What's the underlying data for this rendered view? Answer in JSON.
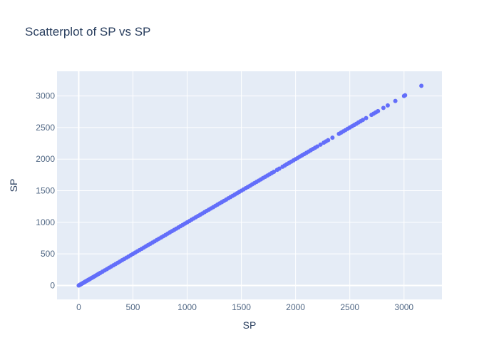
{
  "chart_data": {
    "type": "scatter",
    "title": "Scatterplot of SP vs SP",
    "xlabel": "SP",
    "ylabel": "SP",
    "xlim": [
      -200,
      3350
    ],
    "ylim": [
      -220,
      3390
    ],
    "x_ticks": [
      0,
      500,
      1000,
      1500,
      2000,
      2500,
      3000
    ],
    "y_ticks": [
      0,
      500,
      1000,
      1500,
      2000,
      2500,
      3000
    ],
    "grid": true,
    "legend": "none",
    "colors": {
      "plot_background": "#e5ecf6",
      "grid": "#ffffff",
      "marker": "#636efa",
      "title": "#2a3f5f",
      "tick_label": "#506784",
      "axis_label": "#2a3f5f"
    },
    "points": [
      [
        0,
        0
      ],
      [
        5,
        5
      ],
      [
        10,
        10
      ],
      [
        15,
        15
      ],
      [
        20,
        20
      ],
      [
        25,
        25
      ],
      [
        30,
        30
      ],
      [
        35,
        35
      ],
      [
        40,
        40
      ],
      [
        45,
        45
      ],
      [
        50,
        50
      ],
      [
        55,
        55
      ],
      [
        60,
        60
      ],
      [
        65,
        65
      ],
      [
        70,
        70
      ],
      [
        75,
        75
      ],
      [
        80,
        80
      ],
      [
        85,
        85
      ],
      [
        90,
        90
      ],
      [
        95,
        95
      ],
      [
        100,
        100
      ],
      [
        110,
        110
      ],
      [
        120,
        120
      ],
      [
        130,
        130
      ],
      [
        140,
        140
      ],
      [
        150,
        150
      ],
      [
        160,
        160
      ],
      [
        170,
        170
      ],
      [
        180,
        180
      ],
      [
        190,
        190
      ],
      [
        200,
        200
      ],
      [
        220,
        220
      ],
      [
        240,
        240
      ],
      [
        260,
        260
      ],
      [
        280,
        280
      ],
      [
        300,
        300
      ],
      [
        320,
        320
      ],
      [
        340,
        340
      ],
      [
        360,
        360
      ],
      [
        380,
        380
      ],
      [
        400,
        400
      ],
      [
        420,
        420
      ],
      [
        440,
        440
      ],
      [
        460,
        460
      ],
      [
        480,
        480
      ],
      [
        500,
        500
      ],
      [
        520,
        520
      ],
      [
        540,
        540
      ],
      [
        560,
        560
      ],
      [
        580,
        580
      ],
      [
        600,
        600
      ],
      [
        620,
        620
      ],
      [
        640,
        640
      ],
      [
        660,
        660
      ],
      [
        680,
        680
      ],
      [
        700,
        700
      ],
      [
        720,
        720
      ],
      [
        740,
        740
      ],
      [
        760,
        760
      ],
      [
        780,
        780
      ],
      [
        800,
        800
      ],
      [
        820,
        820
      ],
      [
        840,
        840
      ],
      [
        860,
        860
      ],
      [
        880,
        880
      ],
      [
        900,
        900
      ],
      [
        920,
        920
      ],
      [
        940,
        940
      ],
      [
        960,
        960
      ],
      [
        980,
        980
      ],
      [
        1000,
        1000
      ],
      [
        1020,
        1020
      ],
      [
        1040,
        1040
      ],
      [
        1060,
        1060
      ],
      [
        1080,
        1080
      ],
      [
        1100,
        1100
      ],
      [
        1120,
        1120
      ],
      [
        1140,
        1140
      ],
      [
        1160,
        1160
      ],
      [
        1180,
        1180
      ],
      [
        1200,
        1200
      ],
      [
        1220,
        1220
      ],
      [
        1240,
        1240
      ],
      [
        1260,
        1260
      ],
      [
        1280,
        1280
      ],
      [
        1300,
        1300
      ],
      [
        1320,
        1320
      ],
      [
        1340,
        1340
      ],
      [
        1360,
        1360
      ],
      [
        1380,
        1380
      ],
      [
        1400,
        1400
      ],
      [
        1420,
        1420
      ],
      [
        1440,
        1440
      ],
      [
        1460,
        1460
      ],
      [
        1480,
        1480
      ],
      [
        1500,
        1500
      ],
      [
        1520,
        1520
      ],
      [
        1540,
        1540
      ],
      [
        1560,
        1560
      ],
      [
        1580,
        1580
      ],
      [
        1600,
        1600
      ],
      [
        1620,
        1620
      ],
      [
        1640,
        1640
      ],
      [
        1660,
        1660
      ],
      [
        1680,
        1680
      ],
      [
        1700,
        1700
      ],
      [
        1720,
        1720
      ],
      [
        1740,
        1740
      ],
      [
        1760,
        1760
      ],
      [
        1780,
        1780
      ],
      [
        1800,
        1800
      ],
      [
        1830,
        1830
      ],
      [
        1850,
        1850
      ],
      [
        1880,
        1880
      ],
      [
        1900,
        1900
      ],
      [
        1920,
        1920
      ],
      [
        1940,
        1940
      ],
      [
        1960,
        1960
      ],
      [
        1980,
        1980
      ],
      [
        2000,
        2000
      ],
      [
        2020,
        2020
      ],
      [
        2040,
        2040
      ],
      [
        2060,
        2060
      ],
      [
        2080,
        2080
      ],
      [
        2100,
        2100
      ],
      [
        2120,
        2120
      ],
      [
        2140,
        2140
      ],
      [
        2160,
        2160
      ],
      [
        2180,
        2180
      ],
      [
        2200,
        2200
      ],
      [
        2230,
        2230
      ],
      [
        2260,
        2260
      ],
      [
        2280,
        2280
      ],
      [
        2300,
        2300
      ],
      [
        2340,
        2340
      ],
      [
        2400,
        2400
      ],
      [
        2420,
        2420
      ],
      [
        2440,
        2440
      ],
      [
        2460,
        2460
      ],
      [
        2480,
        2480
      ],
      [
        2500,
        2500
      ],
      [
        2520,
        2520
      ],
      [
        2540,
        2540
      ],
      [
        2560,
        2560
      ],
      [
        2580,
        2580
      ],
      [
        2600,
        2600
      ],
      [
        2620,
        2620
      ],
      [
        2650,
        2650
      ],
      [
        2700,
        2700
      ],
      [
        2720,
        2720
      ],
      [
        2740,
        2740
      ],
      [
        2760,
        2760
      ],
      [
        2810,
        2810
      ],
      [
        2850,
        2850
      ],
      [
        2920,
        2920
      ],
      [
        3000,
        3000
      ],
      [
        3010,
        3010
      ],
      [
        3160,
        3160
      ]
    ]
  }
}
